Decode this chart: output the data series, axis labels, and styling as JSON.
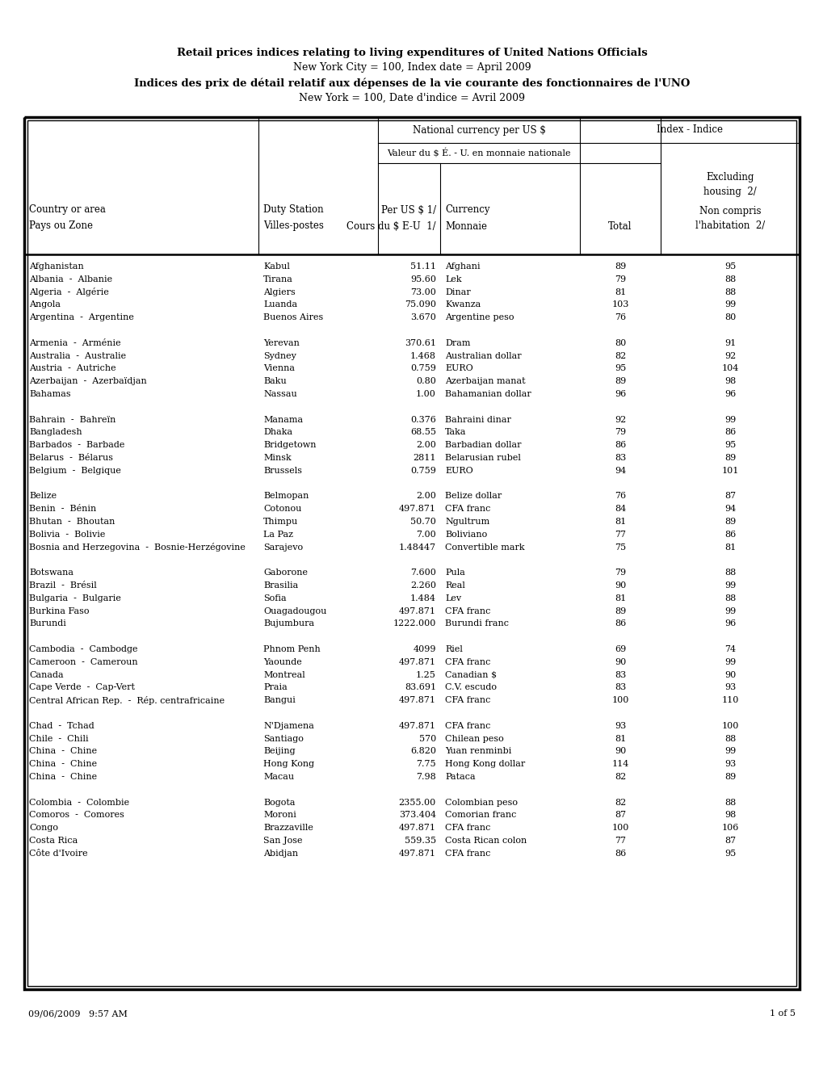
{
  "title1": "Retail prices indices relating to living expenditures of United Nations Officials",
  "title2": "New York City = 100, Index date = April 2009",
  "title3": "Indices des prix de détail relatif aux dépenses de la vie courante des fonctionnaires de l'UNO",
  "title4": "New York = 100, Date d'indice = Avril 2009",
  "header1_line1": "National currency per US $",
  "header1_line2": "Valeur du $ É. - U. en monnaie nationale",
  "header2": "Index - Indice",
  "col1_line1": "Country or area",
  "col1_line2": "Pays ou Zone",
  "col2_line1": "Duty Station",
  "col2_line2": "Villes-postes",
  "col3_line1": "Per US $ 1/",
  "col3_line2": "Cours du $ E-U  1/",
  "col4_line1": "Currency",
  "col4_line2": "Monnaie",
  "col5": "Total",
  "col6_line1": "Excluding",
  "col6_line2": "housing  2/",
  "col6_line3": "Non compris",
  "col6_line4": "l'habitation  2/",
  "footer_date": "09/06/2009   9:57 AM",
  "footer_page": "1 of 5",
  "rows": [
    [
      "Afghanistan",
      "Kabul",
      "51.11",
      "Afghani",
      "89",
      "95"
    ],
    [
      "Albania  -  Albanie",
      "Tirana",
      "95.60",
      "Lek",
      "79",
      "88"
    ],
    [
      "Algeria  -  Algérie",
      "Algiers",
      "73.00",
      "Dinar",
      "81",
      "88"
    ],
    [
      "Angola",
      "Luanda",
      "75.090",
      "Kwanza",
      "103",
      "99"
    ],
    [
      "Argentina  -  Argentine",
      "Buenos Aires",
      "3.670",
      "Argentine peso",
      "76",
      "80"
    ],
    [
      "",
      "",
      "",
      "",
      "",
      ""
    ],
    [
      "Armenia  -  Arménie",
      "Yerevan",
      "370.61",
      "Dram",
      "80",
      "91"
    ],
    [
      "Australia  -  Australie",
      "Sydney",
      "1.468",
      "Australian dollar",
      "82",
      "92"
    ],
    [
      "Austria  -  Autriche",
      "Vienna",
      "0.759",
      "EURO",
      "95",
      "104"
    ],
    [
      "Azerbaijan  -  Azerbaïdjan",
      "Baku",
      "0.80",
      "Azerbaijan manat",
      "89",
      "98"
    ],
    [
      "Bahamas",
      "Nassau",
      "1.00",
      "Bahamanian dollar",
      "96",
      "96"
    ],
    [
      "",
      "",
      "",
      "",
      "",
      ""
    ],
    [
      "Bahrain  -  Bahreïn",
      "Manama",
      "0.376",
      "Bahraini dinar",
      "92",
      "99"
    ],
    [
      "Bangladesh",
      "Dhaka",
      "68.55",
      "Taka",
      "79",
      "86"
    ],
    [
      "Barbados  -  Barbade",
      "Bridgetown",
      "2.00",
      "Barbadian dollar",
      "86",
      "95"
    ],
    [
      "Belarus  -  Bélarus",
      "Minsk",
      "2811",
      "Belarusian rubel",
      "83",
      "89"
    ],
    [
      "Belgium  -  Belgique",
      "Brussels",
      "0.759",
      "EURO",
      "94",
      "101"
    ],
    [
      "",
      "",
      "",
      "",
      "",
      ""
    ],
    [
      "Belize",
      "Belmopan",
      "2.00",
      "Belize dollar",
      "76",
      "87"
    ],
    [
      "Benin  -  Bénin",
      "Cotonou",
      "497.871",
      "CFA franc",
      "84",
      "94"
    ],
    [
      "Bhutan  -  Bhoutan",
      "Thimpu",
      "50.70",
      "Ngultrum",
      "81",
      "89"
    ],
    [
      "Bolivia  -  Bolivie",
      "La Paz",
      "7.00",
      "Boliviano",
      "77",
      "86"
    ],
    [
      "Bosnia and Herzegovina  -  Bosnie-Herzégovine",
      "Sarajevo",
      "1.48447",
      "Convertible mark",
      "75",
      "81"
    ],
    [
      "",
      "",
      "",
      "",
      "",
      ""
    ],
    [
      "Botswana",
      "Gaborone",
      "7.600",
      "Pula",
      "79",
      "88"
    ],
    [
      "Brazil  -  Brésil",
      "Brasilia",
      "2.260",
      "Real",
      "90",
      "99"
    ],
    [
      "Bulgaria  -  Bulgarie",
      "Sofia",
      "1.484",
      "Lev",
      "81",
      "88"
    ],
    [
      "Burkina Faso",
      "Ouagadougou",
      "497.871",
      "CFA franc",
      "89",
      "99"
    ],
    [
      "Burundi",
      "Bujumbura",
      "1222.000",
      "Burundi franc",
      "86",
      "96"
    ],
    [
      "",
      "",
      "",
      "",
      "",
      ""
    ],
    [
      "Cambodia  -  Cambodge",
      "Phnom Penh",
      "4099",
      "Riel",
      "69",
      "74"
    ],
    [
      "Cameroon  -  Cameroun",
      "Yaounde",
      "497.871",
      "CFA franc",
      "90",
      "99"
    ],
    [
      "Canada",
      "Montreal",
      "1.25",
      "Canadian $",
      "83",
      "90"
    ],
    [
      "Cape Verde  -  Cap-Vert",
      "Praia",
      "83.691",
      "C.V. escudo",
      "83",
      "93"
    ],
    [
      "Central African Rep.  -  Rép. centrafricaine",
      "Bangui",
      "497.871",
      "CFA franc",
      "100",
      "110"
    ],
    [
      "",
      "",
      "",
      "",
      "",
      ""
    ],
    [
      "Chad  -  Tchad",
      "N'Djamena",
      "497.871",
      "CFA franc",
      "93",
      "100"
    ],
    [
      "Chile  -  Chili",
      "Santiago",
      "570",
      "Chilean peso",
      "81",
      "88"
    ],
    [
      "China  -  Chine",
      "Beijing",
      "6.820",
      "Yuan renminbi",
      "90",
      "99"
    ],
    [
      "China  -  Chine",
      "Hong Kong",
      "7.75",
      "Hong Kong dollar",
      "114",
      "93"
    ],
    [
      "China  -  Chine",
      "Macau",
      "7.98",
      "Pataca",
      "82",
      "89"
    ],
    [
      "",
      "",
      "",
      "",
      "",
      ""
    ],
    [
      "Colombia  -  Colombie",
      "Bogota",
      "2355.00",
      "Colombian peso",
      "82",
      "88"
    ],
    [
      "Comoros  -  Comores",
      "Moroni",
      "373.404",
      "Comorian franc",
      "87",
      "98"
    ],
    [
      "Congo",
      "Brazzaville",
      "497.871",
      "CFA franc",
      "100",
      "106"
    ],
    [
      "Costa Rica",
      "San Jose",
      "559.35",
      "Costa Rican colon",
      "77",
      "87"
    ],
    [
      "Côte d'Ivoire",
      "Abidjan",
      "497.871",
      "CFA franc",
      "86",
      "95"
    ]
  ]
}
